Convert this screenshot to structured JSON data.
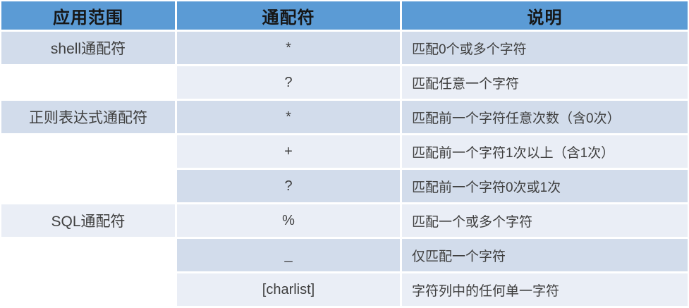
{
  "colors": {
    "header_bg": "#5B9BD5",
    "row_dark": "#D2DCEB",
    "row_light": "#EAEEF6",
    "header_text": "#161616",
    "body_text": "#3F3F3F",
    "page_bg": "#FFFFFF"
  },
  "table": {
    "headers": [
      "应用范围",
      "通配符",
      "说明"
    ],
    "groups": [
      {
        "scope": "shell通配符",
        "rows": [
          {
            "symbol": "*",
            "description": "匹配0个或多个字符"
          },
          {
            "symbol": "?",
            "description": "匹配任意一个字符"
          }
        ]
      },
      {
        "scope": "正则表达式通配符",
        "rows": [
          {
            "symbol": "*",
            "description": "匹配前一个字符任意次数（含0次）"
          },
          {
            "symbol": "+",
            "description": "匹配前一个字符1次以上（含1次）"
          },
          {
            "symbol": "?",
            "description": "匹配前一个字符0次或1次"
          }
        ]
      },
      {
        "scope": "SQL通配符",
        "rows": [
          {
            "symbol": "%",
            "description": "匹配一个或多个字符"
          },
          {
            "symbol": "_",
            "description": "仅匹配一个字符"
          },
          {
            "symbol": "[charlist]",
            "description": "字符列中的任何单一字符"
          }
        ]
      }
    ]
  }
}
